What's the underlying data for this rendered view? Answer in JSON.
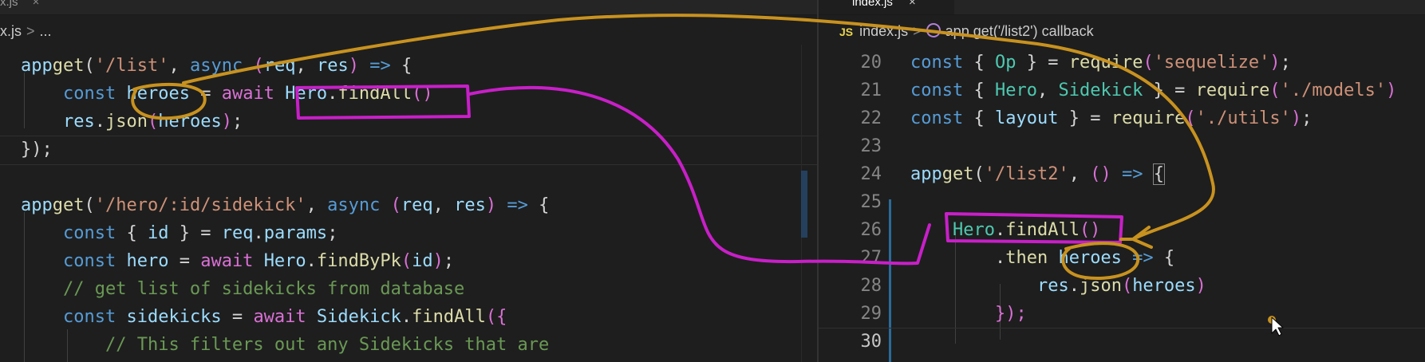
{
  "left_pane": {
    "tab_label": "x.js",
    "tab_close": "×",
    "breadcrumb": {
      "file": "x.js",
      "sep": ">",
      "rest": "..."
    }
  },
  "right_pane": {
    "tab_label": "index.js",
    "tab_close": "×",
    "breadcrumb": {
      "badge": "JS",
      "file": "index.js",
      "sep": ">",
      "symbol": "app.get('/list2') callback"
    },
    "line_numbers": [
      "20",
      "21",
      "22",
      "23",
      "24",
      "25",
      "26",
      "27",
      "28",
      "29",
      "30"
    ]
  },
  "left_code": {
    "l1": {
      "a": "app",
      ".": ".",
      "get": "get",
      "p1": "(",
      "s": "'/list'",
      ",": ", ",
      "async": "async",
      "sp": " ",
      "p2": "(",
      "req": "req",
      "c": ", ",
      "res": "res",
      "p3": ")",
      "ar": " => ",
      "b": "{"
    },
    "l2": {
      "ind": "    ",
      "const": "const",
      "sp": " ",
      "heroes": "heroes",
      "eq": " = ",
      "await": "await",
      "sp2": " ",
      "Hero": "Hero",
      "dot": ".",
      "fn": "findAll",
      "pp": "()"
    },
    "l3": {
      "ind": "    ",
      "res": "res",
      "dot": ".",
      "json": "json",
      "p1": "(",
      "heroes": "heroes",
      "p2": ")",
      "semi": ";"
    },
    "l4": {
      "close": "});"
    },
    "l6": {
      "a": "app",
      ".": ".",
      "get": "get",
      "p1": "(",
      "s": "'/hero/:id/sidekick'",
      ",": ", ",
      "async": "async",
      "sp": " ",
      "p2": "(",
      "req": "req",
      "c": ", ",
      "res": "res",
      "p3": ")",
      "ar": " => ",
      "b": "{"
    },
    "l7": {
      "ind": "    ",
      "const": "const",
      "rest": " { ",
      "id": "id",
      "rest2": " } = ",
      "req": "req",
      "dot": ".",
      "params": "params",
      "semi": ";"
    },
    "l8": {
      "ind": "    ",
      "const": "const",
      "sp": " ",
      "hero": "hero",
      "eq": " = ",
      "await": "await",
      "sp2": " ",
      "Hero": "Hero",
      "dot": ".",
      "fn": "findByPk",
      "p1": "(",
      "id": "id",
      "p2": ")",
      "semi": ";"
    },
    "l9": {
      "ind": "    ",
      "comment": "// get list of sidekicks from database"
    },
    "l10": {
      "ind": "    ",
      "const": "const",
      "sp": " ",
      "sidekicks": "sidekicks",
      "eq": " = ",
      "await": "await",
      "sp2": " ",
      "Sidekick": "Sidekick",
      "dot": ".",
      "fn": "findAll",
      "p1": "({"
    },
    "l11": {
      "ind": "        ",
      "comment": "// This filters out any Sidekicks that are"
    }
  },
  "right_code": {
    "l20": {
      "const": "const",
      "o": " { ",
      "Op": "Op",
      "c": " } = ",
      "require": "require",
      "p1": "(",
      "s": "'sequelize'",
      "p2": ")",
      "semi": ";"
    },
    "l21": {
      "const": "const",
      "o": " { ",
      "Hero": "Hero",
      "comma": ", ",
      "Sidekick": "Sidekick",
      "c": " } = ",
      "require": "require",
      "p1": "(",
      "s": "'./models'",
      "p2": ")"
    },
    "l22": {
      "const": "const",
      "o": " { ",
      "layout": "layout",
      "c": " } = ",
      "require": "require",
      "p1": "(",
      "s": "'./utils'",
      "p2": ")",
      "semi": ";"
    },
    "l24": {
      "a": "app",
      ".": ".",
      "get": "get",
      "p1": "(",
      "s": "'/list2'",
      ",": ", ",
      "pp": "()",
      "ar": " => ",
      "b": "{"
    },
    "l26": {
      "ind": "    ",
      "Hero": "Hero",
      "dot": ".",
      "fn": "findAll",
      "pp": "()"
    },
    "l27": {
      "ind": "        ",
      "dot": ".",
      "then": "then",
      "sp": " ",
      "heroes": "heroes",
      "ar": " => ",
      "b": "{"
    },
    "l28": {
      "ind": "            ",
      "res": "res",
      "dot": ".",
      "json": "json",
      "p1": "(",
      "heroes": "heroes",
      "p2": ")"
    },
    "l29": {
      "ind": "        ",
      "close": "});"
    }
  },
  "annotation_colors": {
    "magenta": "#c81fc8",
    "gold": "#c8921f"
  },
  "theme": {
    "background": "#1e1e1e",
    "keyword": "#569cd6",
    "string": "#ce9178",
    "function": "#dcdcaa"
  }
}
